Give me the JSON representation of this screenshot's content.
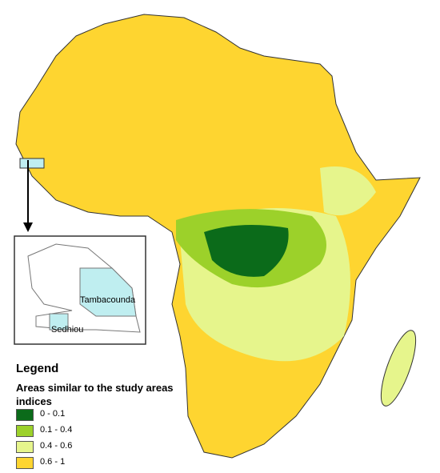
{
  "legend": {
    "title": "Legend",
    "subtitle": "Areas similar to the study areas indices",
    "items": [
      {
        "label": "0 - 0.1",
        "color": "#0b6b1a"
      },
      {
        "label": "0.1 - 0.4",
        "color": "#9cd12a"
      },
      {
        "label": "0.4 - 0.6",
        "color": "#e6f58c"
      },
      {
        "label": "0.6 - 1",
        "color": "#fed530"
      }
    ]
  },
  "inset": {
    "labels": [
      "Tambacounda",
      "Sedhiou"
    ]
  }
}
